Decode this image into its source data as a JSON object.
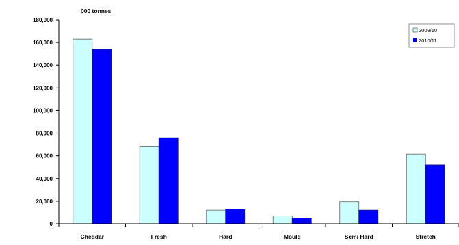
{
  "chart_data": {
    "type": "bar",
    "title": "000 tonnes",
    "xlabel": "",
    "ylabel": "",
    "categories": [
      "Cheddar",
      "Fresh",
      "Hard",
      "Mould",
      "Semi Hard",
      "Stretch"
    ],
    "series": [
      {
        "name": "2009/10",
        "values": [
          163000,
          68000,
          12000,
          7000,
          19500,
          61500
        ],
        "color": "#ccffff",
        "stroke": "#606060"
      },
      {
        "name": "2010/11",
        "values": [
          154000,
          76000,
          13000,
          5000,
          12000,
          52000
        ],
        "color": "#0000ff",
        "stroke": "#1a1a70"
      }
    ],
    "ylim": [
      0,
      180000
    ],
    "yticks": [
      0,
      20000,
      40000,
      60000,
      80000,
      100000,
      120000,
      140000,
      160000,
      180000
    ],
    "ytick_labels": [
      "0",
      "20,000",
      "40,000",
      "60,000",
      "80,000",
      "100,000",
      "120,000",
      "140,000",
      "160,000",
      "180,000"
    ],
    "grid": false,
    "legend_position": "top-right"
  }
}
